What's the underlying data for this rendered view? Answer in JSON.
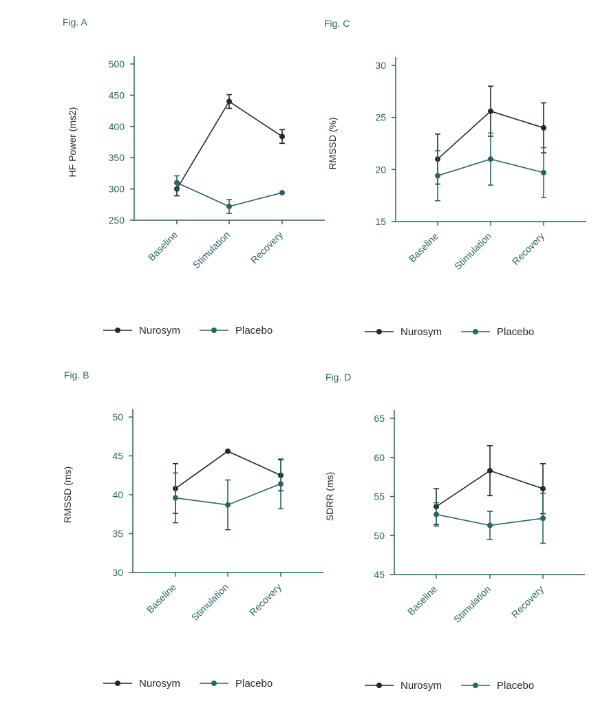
{
  "colors": {
    "nurosym": "#1e2a2a",
    "placebo": "#2a6462",
    "axis": "#2a6462",
    "text": "#2a6462",
    "legend_text": "#1e2a2a"
  },
  "chart_data": [
    {
      "id": "A",
      "fig_label": "Fig. A",
      "type": "line",
      "title": "",
      "ylabel": "HF Power (ms2)",
      "xlabel": "",
      "categories": [
        "Baseline",
        "Stimulation",
        "Recovery"
      ],
      "ylim": [
        250,
        500
      ],
      "yticks": [
        250,
        300,
        350,
        400,
        450,
        500
      ],
      "grid": false,
      "legend": "bottom",
      "series": [
        {
          "name": "Nurosym",
          "color_key": "nurosym",
          "values": [
            300,
            440,
            384
          ],
          "errors": [
            11,
            11,
            11
          ]
        },
        {
          "name": "Placebo",
          "color_key": "placebo",
          "values": [
            310,
            272,
            294
          ],
          "errors": [
            11,
            11,
            0
          ]
        }
      ]
    },
    {
      "id": "C",
      "fig_label": "Fig. C",
      "type": "line",
      "title": "",
      "ylabel": "RMSSD (%)",
      "xlabel": "",
      "categories": [
        "Baseline",
        "Stimulation",
        "Recovery"
      ],
      "ylim": [
        15,
        30
      ],
      "yticks": [
        15,
        20,
        25,
        30
      ],
      "grid": false,
      "legend": "bottom",
      "series": [
        {
          "name": "Nurosym",
          "color_key": "nurosym",
          "values": [
            21,
            25.6,
            24
          ],
          "errors": [
            2.4,
            2.4,
            2.4
          ]
        },
        {
          "name": "Placebo",
          "color_key": "placebo",
          "values": [
            19.4,
            21,
            19.7
          ],
          "errors": [
            2.4,
            2.5,
            2.4
          ]
        }
      ]
    },
    {
      "id": "B",
      "fig_label": "Fig. B",
      "type": "line",
      "title": "",
      "ylabel": "RMSSD (ms)",
      "xlabel": "",
      "categories": [
        "Baseline",
        "Stimulation",
        "Recovery"
      ],
      "ylim": [
        30,
        50
      ],
      "yticks": [
        30,
        35,
        40,
        45,
        50
      ],
      "grid": false,
      "legend": "bottom",
      "series": [
        {
          "name": "Nurosym",
          "color_key": "nurosym",
          "values": [
            40.8,
            45.6,
            42.5
          ],
          "errors": [
            3.2,
            0,
            2
          ]
        },
        {
          "name": "Placebo",
          "color_key": "placebo",
          "values": [
            39.6,
            38.7,
            41.4
          ],
          "errors": [
            3.2,
            3.2,
            3.2
          ]
        }
      ]
    },
    {
      "id": "D",
      "fig_label": "Fig. D",
      "type": "line",
      "title": "",
      "ylabel": "SDRR (ms)",
      "xlabel": "",
      "categories": [
        "Baseline",
        "Stimulation",
        "Recovery"
      ],
      "ylim": [
        45,
        65
      ],
      "yticks": [
        45,
        50,
        55,
        60,
        65
      ],
      "grid": false,
      "legend": "bottom",
      "series": [
        {
          "name": "Nurosym",
          "color_key": "nurosym",
          "values": [
            53.7,
            58.3,
            56
          ],
          "errors": [
            2.3,
            3.2,
            3.2
          ]
        },
        {
          "name": "Placebo",
          "color_key": "placebo",
          "values": [
            52.7,
            51.3,
            52.2
          ],
          "errors": [
            1.5,
            1.8,
            3.2
          ]
        }
      ]
    }
  ]
}
